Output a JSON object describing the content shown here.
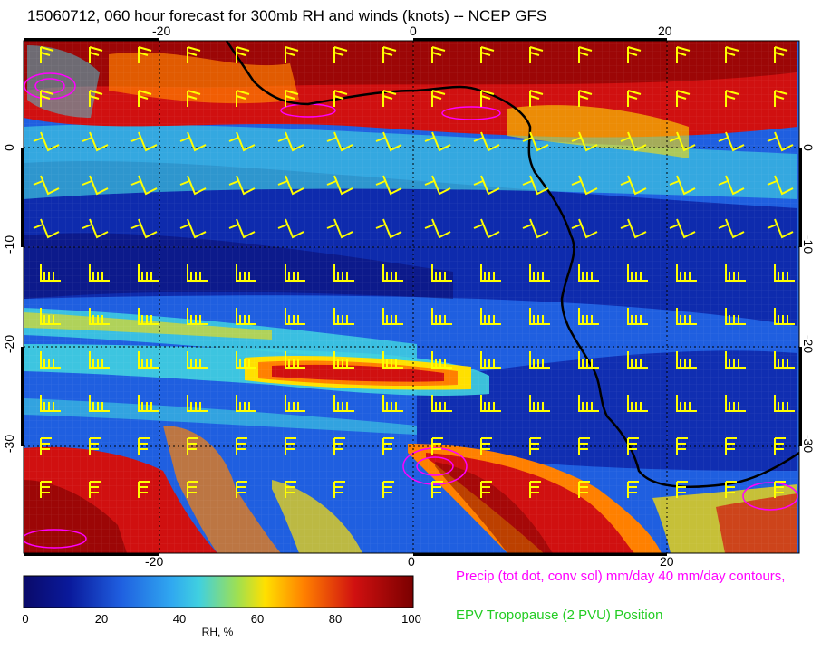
{
  "title": "15060712, 060 hour forecast for 300mb RH and winds (knots) -- NCEP GFS",
  "map": {
    "lon_ticks": [
      "-20",
      "0",
      "20"
    ],
    "lat_ticks": [
      "0",
      "-10",
      "-20",
      "-30"
    ],
    "colors": {
      "deep_blue": "#0a1a9c",
      "blue": "#1f5fe0",
      "cyan": "#40d0e0",
      "green": "#a0e050",
      "yellow": "#ffe000",
      "orange": "#ff8000",
      "red": "#d01010",
      "dark_red": "#7a0000",
      "coast": "#000000",
      "barbs": "#ffff00",
      "precip": "#ff00ff"
    }
  },
  "legend": {
    "precip": "Precip (tot dot, conv sol) mm/day 40 mm/day contours,",
    "epv": "EPV Tropopause (2 PVU) Position"
  },
  "colorbar": {
    "ticks": [
      "0",
      "20",
      "40",
      "60",
      "80",
      "100"
    ],
    "title": "RH, %"
  }
}
